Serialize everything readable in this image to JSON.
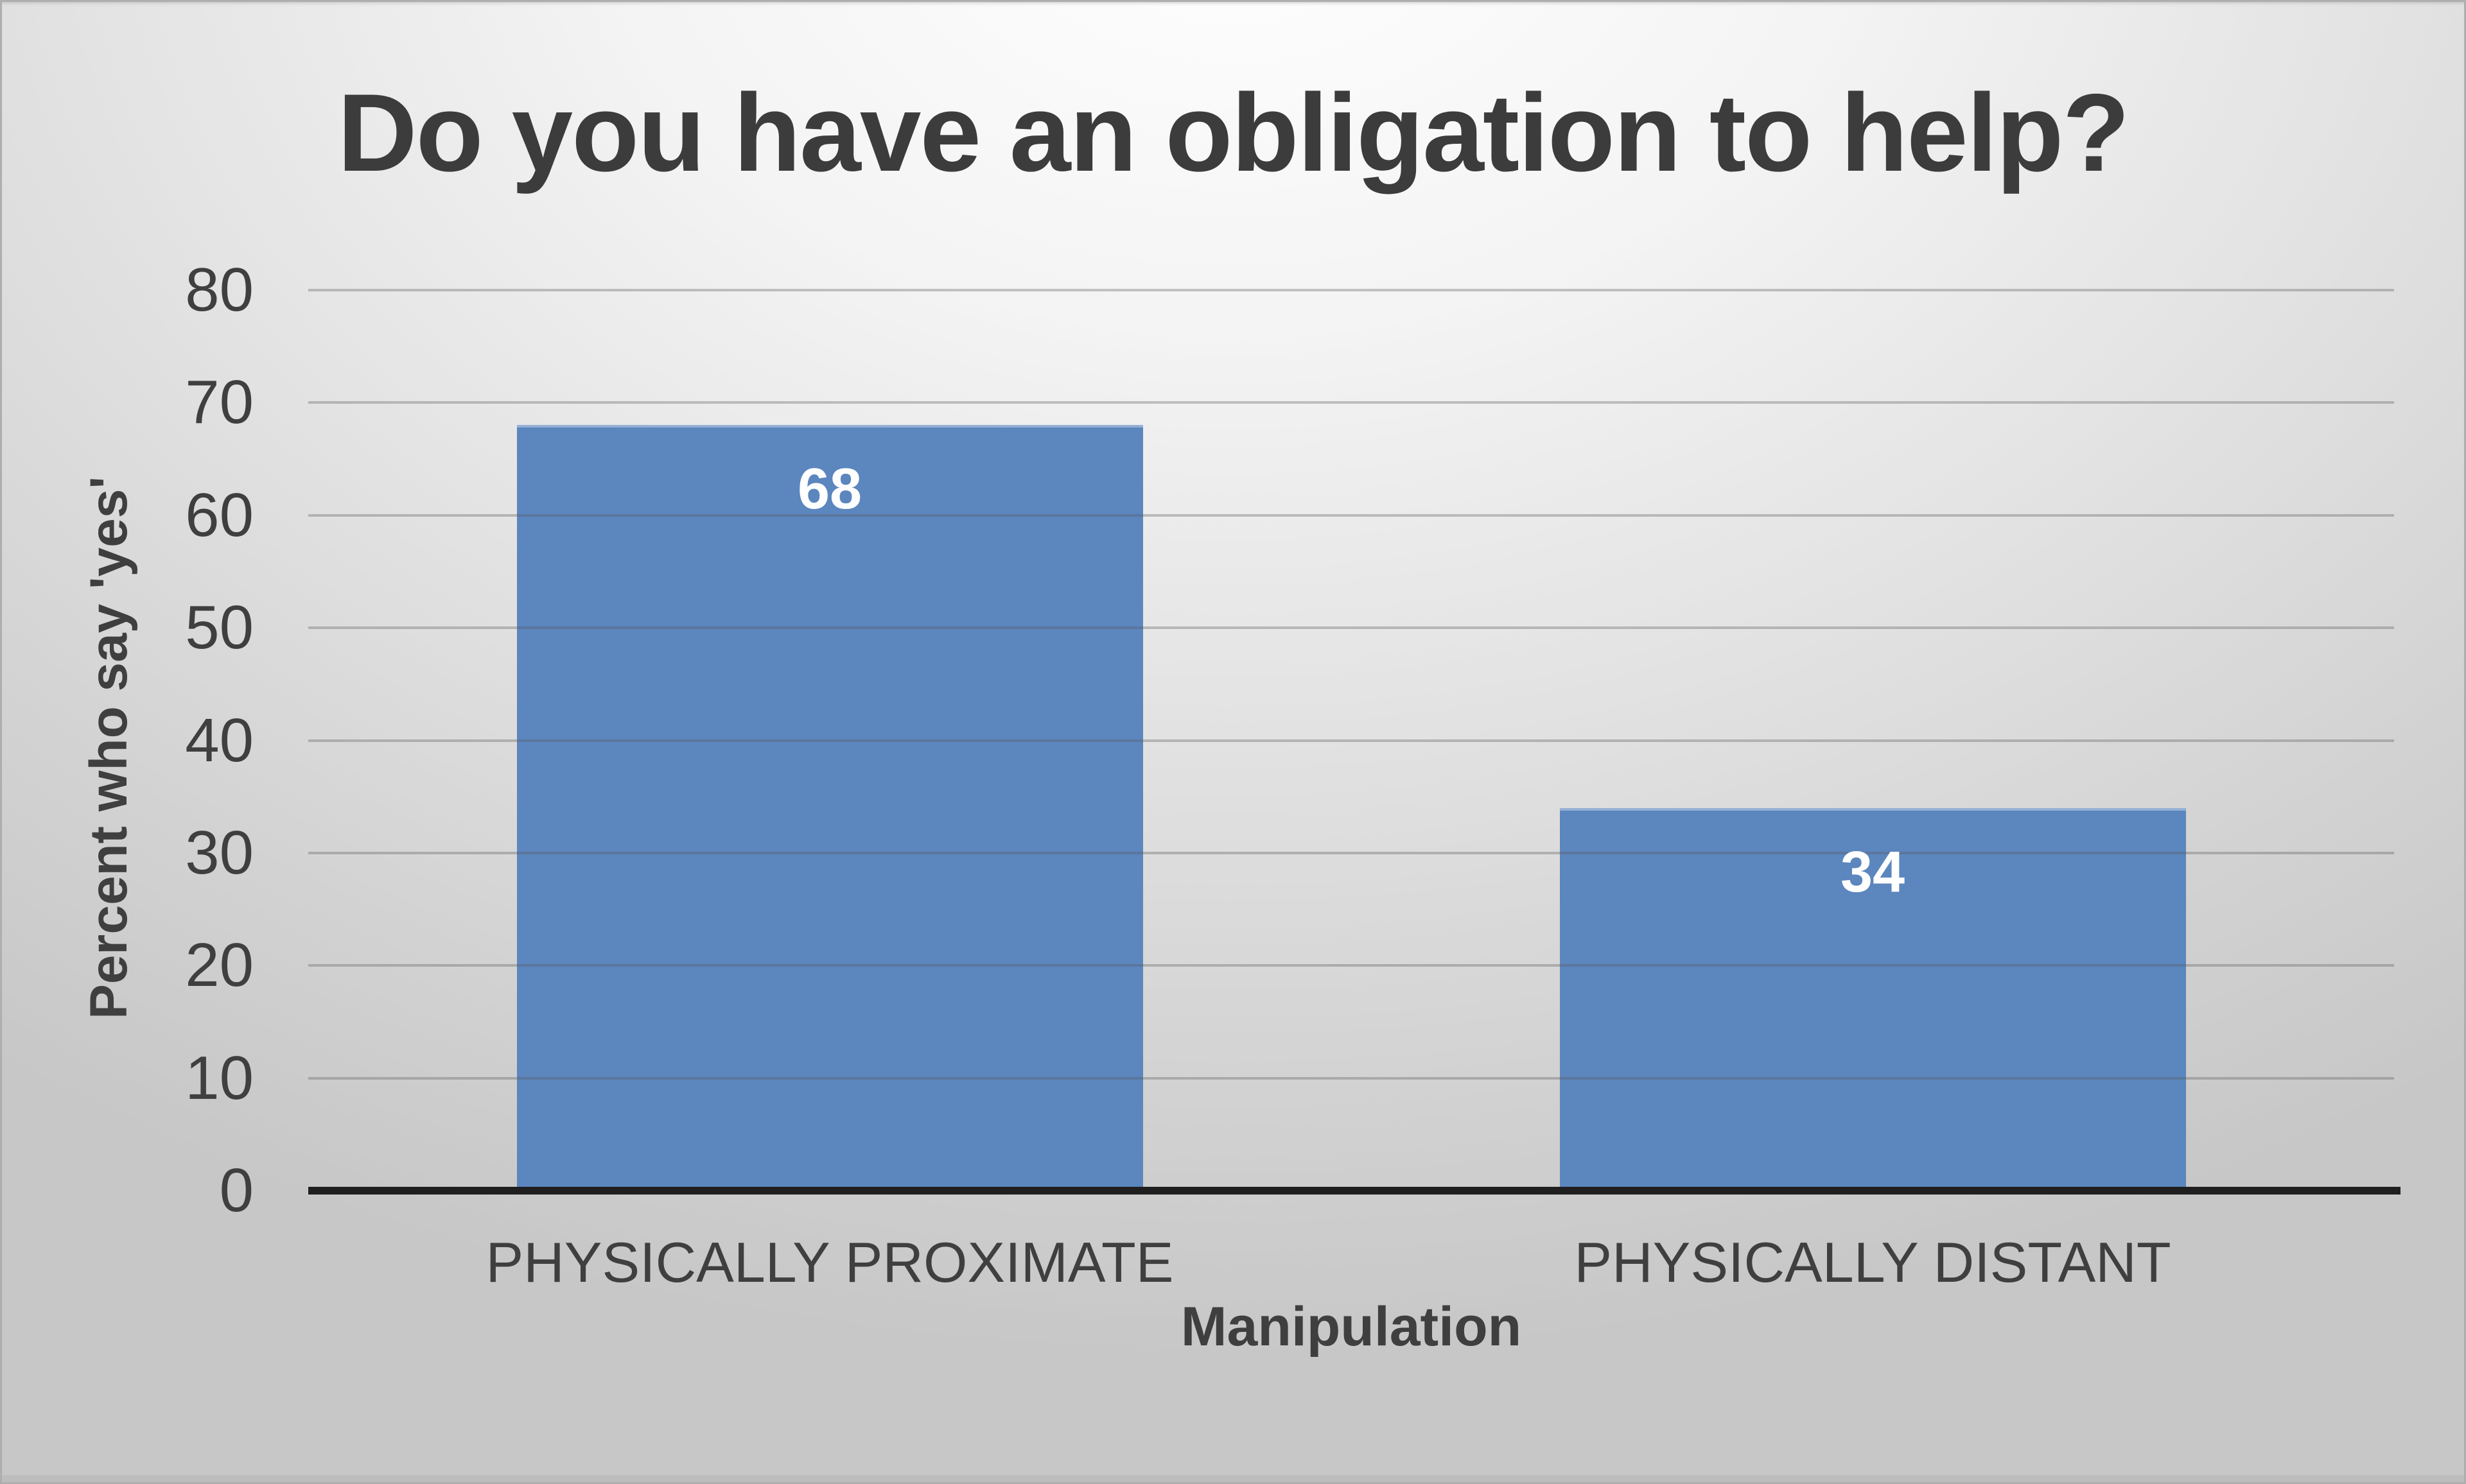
{
  "chart_data": {
    "type": "bar",
    "title": "Do you have an obligation to help?",
    "xlabel": "Manipulation",
    "ylabel": "Percent who say 'yes'",
    "categories": [
      "PHYSICALLY PROXIMATE",
      "PHYSICALLY DISTANT"
    ],
    "values": [
      68,
      34
    ],
    "value_labels": [
      "68",
      "34"
    ],
    "ylim": [
      0,
      80
    ],
    "yticks": [
      0,
      10,
      20,
      30,
      40,
      50,
      60,
      70,
      80
    ],
    "grid": true,
    "legend": "none",
    "bar_color": "#5b86be",
    "value_label_color": "#ffffff",
    "text_color": "#3f3f3f",
    "axis_line_color": "#1f1f1f"
  }
}
